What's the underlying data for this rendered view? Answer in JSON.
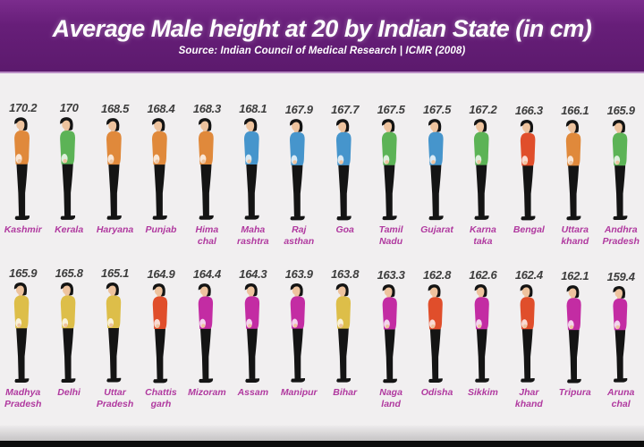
{
  "header": {
    "title": "Average Male height at 20 by Indian State (in cm)",
    "subtitle": "Source: Indian Council of Medical Research | ICMR (2008)",
    "bg_color": "#671e79",
    "text_color": "#ffffff"
  },
  "chart_data": {
    "type": "bar",
    "variant": "people-pictogram",
    "title": "Average Male height at 20 by Indian State (in cm)",
    "source": "Indian Council of Medical Research | ICMR (2008)",
    "unit": "cm",
    "value_range": [
      159.4,
      170.2
    ],
    "legend": "none",
    "categories": [
      "Kashmir",
      "Kerala",
      "Haryana",
      "Punjab",
      "Hima chal",
      "Maha rashtra",
      "Raj asthan",
      "Goa",
      "Tamil Nadu",
      "Gujarat",
      "Karna taka",
      "Bengal",
      "Uttara khand",
      "Andhra Pradesh",
      "Madhya Pradesh",
      "Delhi",
      "Uttar Pradesh",
      "Chattis garh",
      "Mizoram",
      "Assam",
      "Manipur",
      "Bihar",
      "Naga land",
      "Odisha",
      "Sikkim",
      "Jhar khand",
      "Tripura",
      "Aruna chal"
    ],
    "values": [
      170.2,
      170,
      168.5,
      168.4,
      168.3,
      168.1,
      167.9,
      167.7,
      167.5,
      167.5,
      167.2,
      166.3,
      166.1,
      165.9,
      165.9,
      165.8,
      165.1,
      164.9,
      164.4,
      164.3,
      163.9,
      163.8,
      163.3,
      162.8,
      162.6,
      162.4,
      162.1,
      159.4
    ]
  },
  "colors": {
    "shirt_orange": "#e0893b",
    "shirt_green": "#5cb356",
    "shirt_blue": "#4695cc",
    "shirt_red": "#e04e2b",
    "shirt_yellow": "#ddbe49",
    "shirt_magenta": "#c32ca3",
    "skin": "#eec39e",
    "hair_pants": "#141414",
    "label_pink": "#b0399f",
    "value_text": "#3d3d3d"
  },
  "rows": [
    {
      "cells": [
        {
          "value": "170.2",
          "state_lines": [
            "Kashmir"
          ],
          "shirt_color": "#e0893b"
        },
        {
          "value": "170",
          "state_lines": [
            "Kerala"
          ],
          "shirt_color": "#5cb356"
        },
        {
          "value": "168.5",
          "state_lines": [
            "Haryana"
          ],
          "shirt_color": "#e0893b"
        },
        {
          "value": "168.4",
          "state_lines": [
            "Punjab"
          ],
          "shirt_color": "#e0893b"
        },
        {
          "value": "168.3",
          "state_lines": [
            "Hima",
            "chal"
          ],
          "shirt_color": "#e0893b"
        },
        {
          "value": "168.1",
          "state_lines": [
            "Maha",
            "rashtra"
          ],
          "shirt_color": "#4695cc"
        },
        {
          "value": "167.9",
          "state_lines": [
            "Raj",
            "asthan"
          ],
          "shirt_color": "#4695cc"
        },
        {
          "value": "167.7",
          "state_lines": [
            "Goa"
          ],
          "shirt_color": "#4695cc"
        },
        {
          "value": "167.5",
          "state_lines": [
            "Tamil",
            "Nadu"
          ],
          "shirt_color": "#5cb356"
        },
        {
          "value": "167.5",
          "state_lines": [
            "Gujarat"
          ],
          "shirt_color": "#4695cc"
        },
        {
          "value": "167.2",
          "state_lines": [
            "Karna",
            "taka"
          ],
          "shirt_color": "#5cb356"
        },
        {
          "value": "166.3",
          "state_lines": [
            "Bengal"
          ],
          "shirt_color": "#e04e2b"
        },
        {
          "value": "166.1",
          "state_lines": [
            "Uttara",
            "khand"
          ],
          "shirt_color": "#e0893b"
        },
        {
          "value": "165.9",
          "state_lines": [
            "Andhra",
            "Pradesh"
          ],
          "shirt_color": "#5cb356"
        }
      ]
    },
    {
      "cells": [
        {
          "value": "165.9",
          "state_lines": [
            "Madhya",
            "Pradesh"
          ],
          "shirt_color": "#ddbe49"
        },
        {
          "value": "165.8",
          "state_lines": [
            "Delhi"
          ],
          "shirt_color": "#ddbe49"
        },
        {
          "value": "165.1",
          "state_lines": [
            "Uttar",
            "Pradesh"
          ],
          "shirt_color": "#ddbe49"
        },
        {
          "value": "164.9",
          "state_lines": [
            "Chattis",
            "garh"
          ],
          "shirt_color": "#e04e2b"
        },
        {
          "value": "164.4",
          "state_lines": [
            "Mizoram"
          ],
          "shirt_color": "#c32ca3"
        },
        {
          "value": "164.3",
          "state_lines": [
            "Assam"
          ],
          "shirt_color": "#c32ca3"
        },
        {
          "value": "163.9",
          "state_lines": [
            "Manipur"
          ],
          "shirt_color": "#c32ca3"
        },
        {
          "value": "163.8",
          "state_lines": [
            "Bihar"
          ],
          "shirt_color": "#ddbe49"
        },
        {
          "value": "163.3",
          "state_lines": [
            "Naga",
            "land"
          ],
          "shirt_color": "#c32ca3"
        },
        {
          "value": "162.8",
          "state_lines": [
            "Odisha"
          ],
          "shirt_color": "#e04e2b"
        },
        {
          "value": "162.6",
          "state_lines": [
            "Sikkim"
          ],
          "shirt_color": "#c32ca3"
        },
        {
          "value": "162.4",
          "state_lines": [
            "Jhar",
            "khand"
          ],
          "shirt_color": "#e04e2b"
        },
        {
          "value": "162.1",
          "state_lines": [
            "Tripura"
          ],
          "shirt_color": "#c32ca3"
        },
        {
          "value": "159.4",
          "state_lines": [
            "Aruna",
            "chal"
          ],
          "shirt_color": "#c32ca3"
        }
      ]
    }
  ]
}
